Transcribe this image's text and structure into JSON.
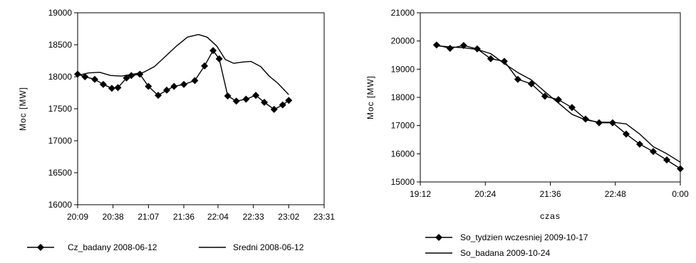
{
  "chart_data": [
    {
      "type": "line",
      "title": "",
      "xlabel": "",
      "ylabel": "Moc [MW]",
      "ylim": [
        16000,
        19000
      ],
      "yticks": [
        "16000",
        "16500",
        "17000",
        "17500",
        "18000",
        "18500",
        "19000"
      ],
      "xlim_minutes": [
        1209,
        1411
      ],
      "xticks": [
        "20:09",
        "20:38",
        "21:07",
        "21:36",
        "22:04",
        "22:33",
        "23:02",
        "23:31"
      ],
      "grid": false,
      "legend_position": "bottom",
      "series": [
        {
          "name": "Cz_badany 2008-06-12",
          "marker": "diamond",
          "x": [
            "20:09",
            "20:15",
            "20:23",
            "20:30",
            "20:37",
            "20:42",
            "20:49",
            "20:53",
            "21:00",
            "21:07",
            "21:15",
            "21:22",
            "21:28",
            "21:36",
            "21:45",
            "21:53",
            "22:00",
            "22:05",
            "22:12",
            "22:19",
            "22:27",
            "22:35",
            "22:42",
            "22:50",
            "22:57",
            "23:02"
          ],
          "values": [
            18040,
            18000,
            17960,
            17880,
            17820,
            17830,
            17980,
            18020,
            18040,
            17850,
            17710,
            17790,
            17850,
            17880,
            17940,
            18170,
            18410,
            18280,
            17700,
            17620,
            17650,
            17710,
            17600,
            17490,
            17560,
            17630
          ]
        },
        {
          "name": "Sredni 2008-06-12",
          "marker": "none",
          "x": [
            "20:09",
            "20:18",
            "20:27",
            "20:36",
            "20:45",
            "20:54",
            "21:03",
            "21:12",
            "21:21",
            "21:30",
            "21:39",
            "21:48",
            "21:55",
            "22:03",
            "22:10",
            "22:17",
            "22:24",
            "22:31",
            "22:39",
            "22:46",
            "22:53",
            "23:02"
          ],
          "values": [
            18020,
            18060,
            18070,
            18020,
            18010,
            18040,
            18070,
            18160,
            18320,
            18480,
            18620,
            18660,
            18620,
            18480,
            18270,
            18210,
            18230,
            18240,
            18160,
            18010,
            17900,
            17720
          ]
        }
      ]
    },
    {
      "type": "line",
      "title": "",
      "xlabel": "czas",
      "ylabel": "Moc [MW]",
      "ylim": [
        15000,
        21000
      ],
      "yticks": [
        "15000",
        "16000",
        "17000",
        "18000",
        "19000",
        "20000",
        "21000"
      ],
      "xlim_minutes": [
        1152,
        1440
      ],
      "xticks": [
        "19:12",
        "20:24",
        "21:36",
        "22:48",
        "0:00"
      ],
      "grid": false,
      "legend_position": "bottom",
      "series": [
        {
          "name": "So_tydzien wczesniej 2009-10-17",
          "marker": "diamond",
          "x": [
            "19:30",
            "19:45",
            "20:00",
            "20:15",
            "20:30",
            "20:45",
            "21:00",
            "21:15",
            "21:30",
            "21:45",
            "22:00",
            "22:15",
            "22:30",
            "22:45",
            "23:00",
            "23:15",
            "23:30",
            "23:45",
            "0:00"
          ],
          "values": [
            19860,
            19740,
            19840,
            19720,
            19370,
            19280,
            18640,
            18480,
            18040,
            17920,
            17640,
            17230,
            17100,
            17100,
            16700,
            16340,
            16080,
            15780,
            15470
          ]
        },
        {
          "name": "So_badana 2009-10-24",
          "marker": "none",
          "x": [
            "19:30",
            "19:45",
            "20:00",
            "20:15",
            "20:30",
            "20:45",
            "21:00",
            "21:15",
            "21:30",
            "21:45",
            "22:00",
            "22:15",
            "22:30",
            "22:45",
            "23:00",
            "23:15",
            "23:30",
            "23:45",
            "0:00"
          ],
          "values": [
            19830,
            19790,
            19760,
            19700,
            19550,
            19200,
            18880,
            18620,
            18200,
            17800,
            17400,
            17200,
            17120,
            17120,
            17060,
            16700,
            16250,
            16000,
            15700
          ]
        }
      ]
    }
  ]
}
